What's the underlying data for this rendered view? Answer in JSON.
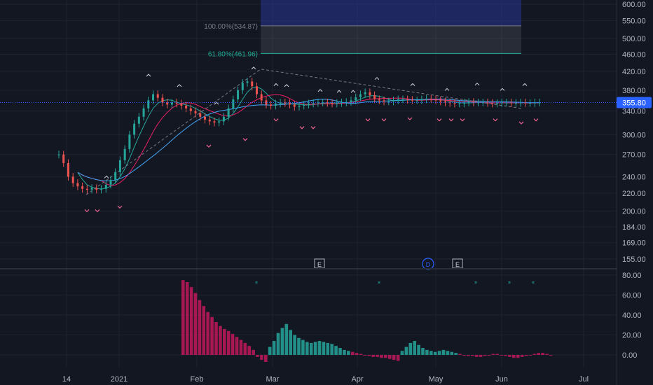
{
  "chart_data": [
    {
      "type": "line",
      "title": "",
      "ylim": [
        150,
        600
      ],
      "y_scale": "log",
      "y_ticks": [
        "600.00",
        "550.00",
        "500.00",
        "460.00",
        "420.00",
        "380.00",
        "340.00",
        "300.00",
        "270.00",
        "240.00",
        "220.00",
        "200.00",
        "184.00",
        "169.00",
        "155.00"
      ],
      "x_ticks": [
        "14",
        "2021",
        "Feb",
        "Mar",
        "Apr",
        "May",
        "Jun",
        "Jul"
      ],
      "last_price": 355.8,
      "last_price_label": "355.80",
      "price_line_color": "#2962ff",
      "fib_levels": [
        {
          "label": "100.00%(534.87)",
          "value": 534.87,
          "color": "#787b86"
        },
        {
          "label": "61.80%(461.96)",
          "value": 461.96,
          "color": "#22ab94"
        }
      ],
      "event_markers": [
        {
          "label": "E",
          "x": "Feb 24"
        },
        {
          "label": "D",
          "x": "May 6"
        },
        {
          "label": "E",
          "x": "May 19"
        }
      ],
      "series": [
        {
          "name": "price",
          "color_up": "#26a69a",
          "color_down": "#ef5350"
        },
        {
          "name": "ma_fast",
          "color": "#26a69a"
        },
        {
          "name": "ma_mid",
          "color": "#e91e63"
        },
        {
          "name": "ma_slow",
          "color": "#42a5f5"
        }
      ]
    },
    {
      "type": "bar",
      "title": "",
      "ylim": [
        -5,
        80
      ],
      "y_ticks": [
        "80.00",
        "60.00",
        "40.00",
        "20.00",
        "0.00"
      ],
      "color_positive": "#26a69a",
      "color_negative": "#c2185b",
      "values": [
        75,
        73,
        68,
        62,
        55,
        49,
        43,
        38,
        33,
        29,
        26,
        24,
        21,
        18,
        15,
        12,
        9,
        5,
        -2,
        -5,
        -7,
        8,
        14,
        22,
        27,
        31,
        25,
        20,
        17,
        15,
        13,
        12,
        13,
        14,
        13,
        12,
        11,
        9,
        7,
        5,
        4,
        3,
        2,
        1,
        0,
        -1,
        -2,
        -2,
        -3,
        -3,
        -4,
        -5,
        -6,
        4,
        8,
        12,
        14,
        10,
        7,
        5,
        4,
        3,
        4,
        5,
        4,
        3,
        2,
        1,
        0,
        -1,
        -1,
        -2,
        -2,
        -1,
        0,
        1,
        1,
        0,
        -1,
        -2,
        -3,
        -3,
        -2,
        -1,
        0,
        1,
        2,
        2,
        1,
        0
      ]
    }
  ]
}
